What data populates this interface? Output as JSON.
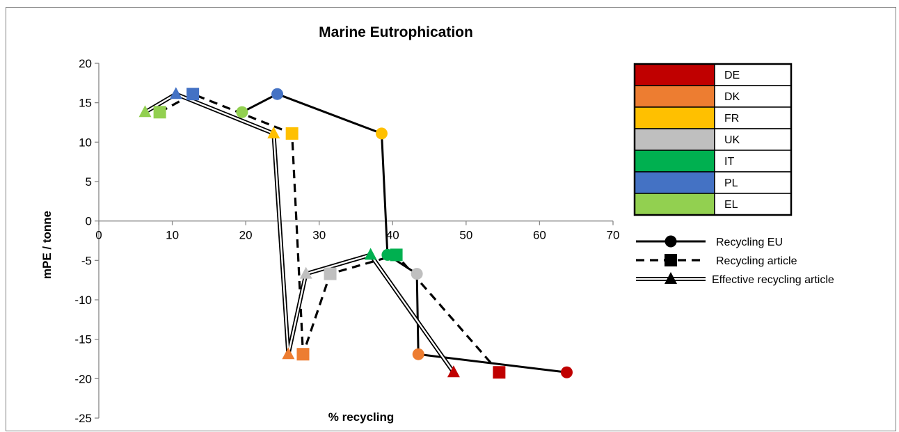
{
  "chart_data": {
    "type": "scatter",
    "title": "Marine Eutrophication",
    "xlabel": "% recycling",
    "ylabel": "mPE / tonne",
    "xlim": [
      0,
      70
    ],
    "ylim": [
      -25,
      20
    ],
    "xticks": [
      0,
      10,
      20,
      30,
      40,
      50,
      60,
      70
    ],
    "yticks": [
      20,
      15,
      10,
      5,
      0,
      -5,
      -10,
      -15,
      -20,
      -25
    ],
    "grid": false,
    "countries": [
      {
        "name": "DE",
        "color": "#C00000"
      },
      {
        "name": "DK",
        "color": "#ED7D31"
      },
      {
        "name": "FR",
        "color": "#FFC000"
      },
      {
        "name": "UK",
        "color": "#BFBFBF"
      },
      {
        "name": "IT",
        "color": "#00B050"
      },
      {
        "name": "PL",
        "color": "#4472C4"
      },
      {
        "name": "EL",
        "color": "#92D050"
      }
    ],
    "series": [
      {
        "name": "Recycling EU",
        "marker": "circle",
        "line": "solid",
        "points": [
          {
            "country": "EL",
            "x": 19.5,
            "y": 13.8
          },
          {
            "country": "PL",
            "x": 24.3,
            "y": 16.1
          },
          {
            "country": "FR",
            "x": 38.5,
            "y": 11.1
          },
          {
            "country": "IT",
            "x": 39.3,
            "y": -4.3
          },
          {
            "country": "UK",
            "x": 43.3,
            "y": -6.7
          },
          {
            "country": "DK",
            "x": 43.5,
            "y": -16.9
          },
          {
            "country": "DE",
            "x": 63.7,
            "y": -19.2
          }
        ]
      },
      {
        "name": "Recycling article",
        "marker": "square",
        "line": "dashed",
        "points": [
          {
            "country": "EL",
            "x": 8.3,
            "y": 13.8
          },
          {
            "country": "PL",
            "x": 12.8,
            "y": 16.1
          },
          {
            "country": "FR",
            "x": 26.3,
            "y": 11.1
          },
          {
            "country": "DK",
            "x": 27.8,
            "y": -16.9
          },
          {
            "country": "UK",
            "x": 31.5,
            "y": -6.7
          },
          {
            "country": "IT",
            "x": 40.5,
            "y": -4.3
          },
          {
            "country": "DE",
            "x": 54.5,
            "y": -19.2
          }
        ]
      },
      {
        "name": "Effective recycling article",
        "marker": "triangle",
        "line": "double",
        "points": [
          {
            "country": "EL",
            "x": 6.3,
            "y": 13.8
          },
          {
            "country": "PL",
            "x": 10.5,
            "y": 16.1
          },
          {
            "country": "FR",
            "x": 23.8,
            "y": 11.1
          },
          {
            "country": "DK",
            "x": 25.8,
            "y": -16.9
          },
          {
            "country": "UK",
            "x": 28.2,
            "y": -6.7
          },
          {
            "country": "IT",
            "x": 37.0,
            "y": -4.3
          },
          {
            "country": "DE",
            "x": 48.3,
            "y": -19.2
          }
        ]
      }
    ]
  }
}
